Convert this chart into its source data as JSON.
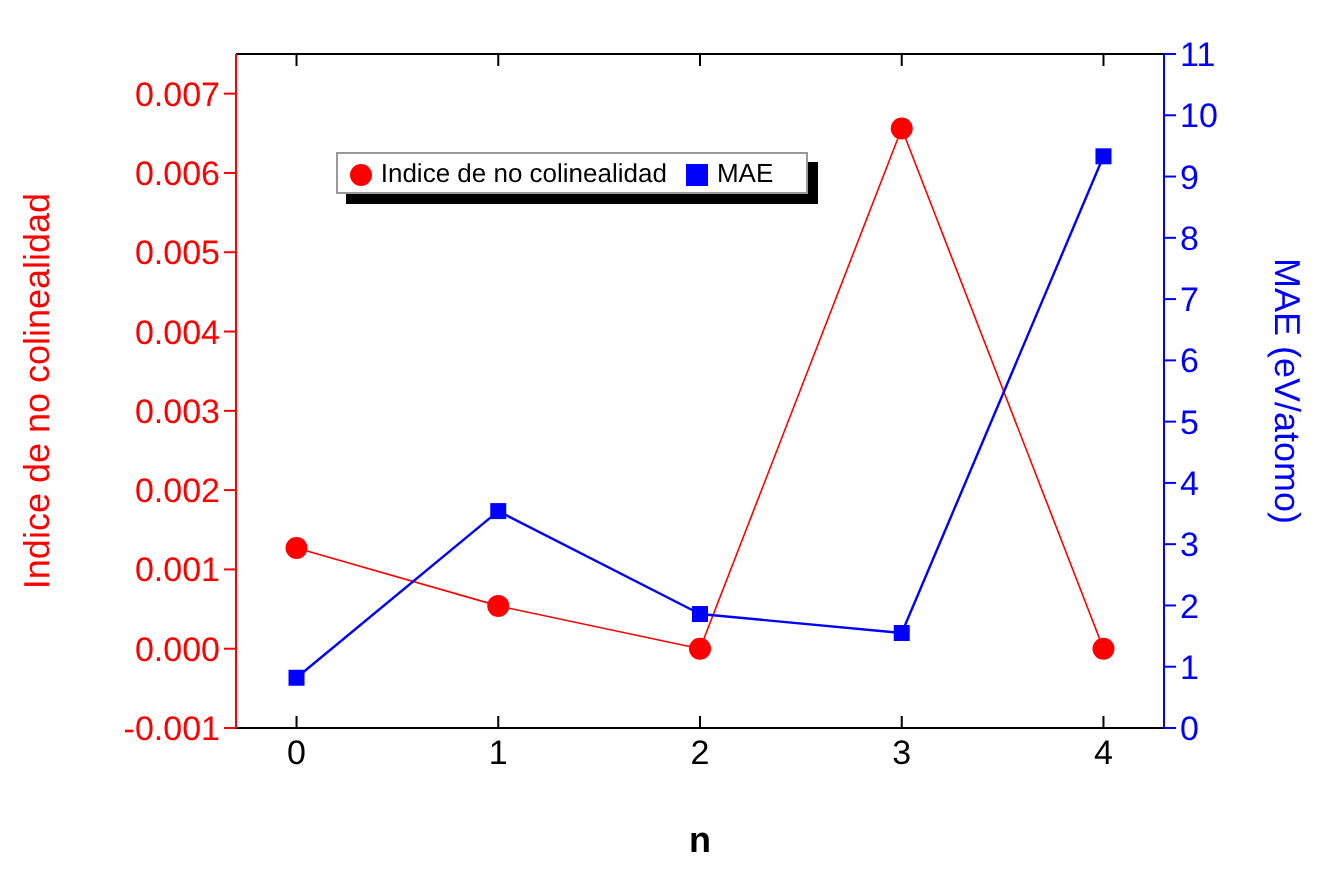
{
  "chart_data": {
    "type": "line",
    "xlabel": "n",
    "ylabel": "Indice de no colinealidad",
    "y2label": "MAE (eV/atomo)",
    "x": [
      0,
      1,
      2,
      3,
      4
    ],
    "xlim": [
      -0.3,
      4.3
    ],
    "xticks": [
      0,
      1,
      2,
      3,
      4
    ],
    "ylim": [
      -0.001,
      0.0075
    ],
    "yticks": [
      {
        "value": -0.001,
        "label": "-0.001"
      },
      {
        "value": 0,
        "label": "0.000"
      },
      {
        "value": 0.001,
        "label": "0.001"
      },
      {
        "value": 0.002,
        "label": "0.002"
      },
      {
        "value": 0.003,
        "label": "0.003"
      },
      {
        "value": 0.004,
        "label": "0.004"
      },
      {
        "value": 0.005,
        "label": "0.005"
      },
      {
        "value": 0.006,
        "label": "0.006"
      },
      {
        "value": 0.007,
        "label": "0.007"
      }
    ],
    "y2lim": [
      0,
      11
    ],
    "y2ticks": [
      0,
      1,
      2,
      3,
      4,
      5,
      6,
      7,
      8,
      9,
      10,
      11
    ],
    "grid": false,
    "legend": "top left",
    "series": [
      {
        "name": "Indice de no colinealidad",
        "color": "#ff0000",
        "marker": "circle",
        "values": [
          0.00127,
          0.00054,
          0,
          0.00656,
          0
        ]
      },
      {
        "name": "MAE",
        "color": "#0000ff",
        "marker": "square",
        "axis": "y2",
        "values": [
          0.82,
          3.54,
          1.86,
          1.55,
          9.33
        ]
      }
    ]
  }
}
